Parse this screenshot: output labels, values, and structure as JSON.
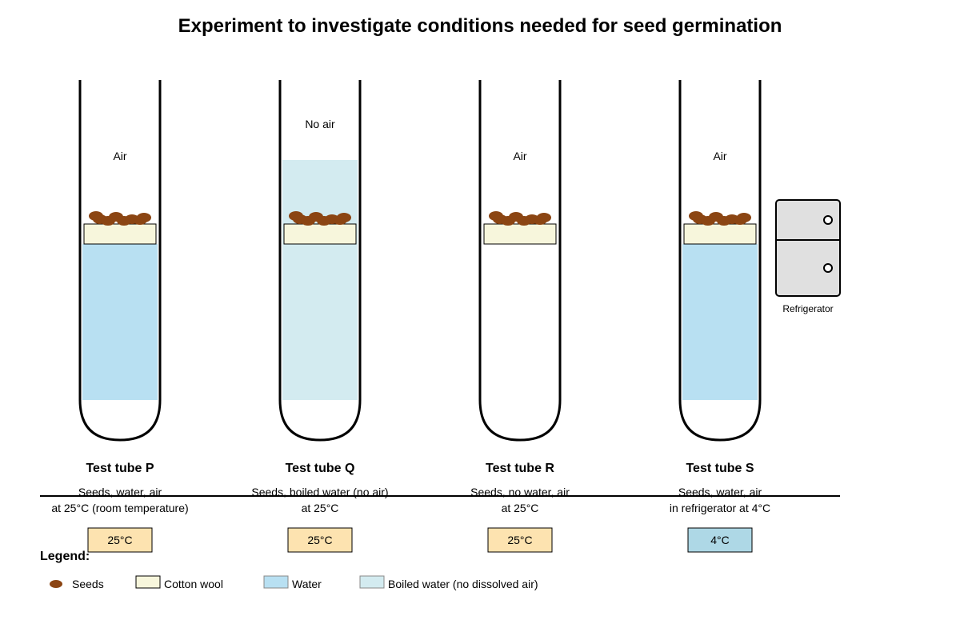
{
  "title": "Experiment to investigate conditions needed for seed germination",
  "colors": {
    "water": "#b8e0f2",
    "boiled_water": "#d3ebf0",
    "cotton": "#f7f6dc",
    "seed": "#8b4513",
    "temp_warm": "#fde3b0",
    "temp_cold": "#aed8e6",
    "fridge": "#e0e0e0"
  },
  "tubes": [
    {
      "name": "Test tube P",
      "top_label": "Air",
      "liquid": "water",
      "desc1": "Seeds, water, air",
      "desc2": "at 25°C (room temperature)",
      "temp": "25°C",
      "temp_style": "warm"
    },
    {
      "name": "Test tube Q",
      "top_label": "No air",
      "liquid": "boiled",
      "desc1": "Seeds, boiled water (no air)",
      "desc2": "at 25°C",
      "temp": "25°C",
      "temp_style": "warm"
    },
    {
      "name": "Test tube R",
      "top_label": "Air",
      "liquid": "none",
      "desc1": "Seeds, no water, air",
      "desc2": "at 25°C",
      "temp": "25°C",
      "temp_style": "warm"
    },
    {
      "name": "Test tube S",
      "top_label": "Air",
      "liquid": "water",
      "desc1": "Seeds, water, air",
      "desc2": "in refrigerator at 4°C",
      "temp": "4°C",
      "temp_style": "cold"
    }
  ],
  "refrigerator_label": "Refrigerator",
  "legend": {
    "title": "Legend:",
    "items": [
      {
        "label": "Seeds",
        "icon": "seed"
      },
      {
        "label": "Cotton wool",
        "icon": "cotton"
      },
      {
        "label": "Water",
        "icon": "water"
      },
      {
        "label": "Boiled water (no dissolved air)",
        "icon": "boiled_water"
      }
    ]
  }
}
